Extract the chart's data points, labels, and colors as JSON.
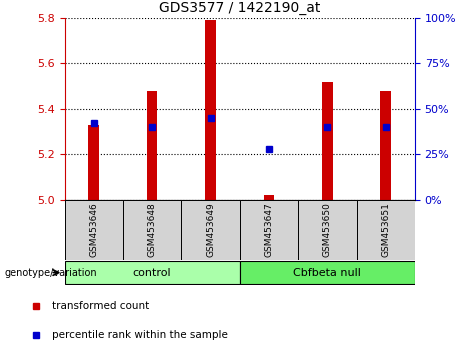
{
  "title": "GDS3577 / 1422190_at",
  "samples": [
    "GSM453646",
    "GSM453648",
    "GSM453649",
    "GSM453647",
    "GSM453650",
    "GSM453651"
  ],
  "transformed_counts": [
    5.33,
    5.48,
    5.79,
    5.02,
    5.52,
    5.48
  ],
  "percentile_ranks": [
    42,
    40,
    45,
    28,
    40,
    40
  ],
  "ylim_left": [
    5.0,
    5.8
  ],
  "ylim_right": [
    0,
    100
  ],
  "yticks_left": [
    5.0,
    5.2,
    5.4,
    5.6,
    5.8
  ],
  "yticks_right": [
    0,
    25,
    50,
    75,
    100
  ],
  "bar_color": "#cc0000",
  "dot_color": "#0000cc",
  "bar_width": 0.18,
  "groups": [
    {
      "label": "control",
      "indices": [
        0,
        1,
        2
      ],
      "color": "#aaffaa"
    },
    {
      "label": "Cbfbeta null",
      "indices": [
        3,
        4,
        5
      ],
      "color": "#66ee66"
    }
  ],
  "group_label": "genotype/variation",
  "legend_items": [
    {
      "label": "transformed count",
      "color": "#cc0000"
    },
    {
      "label": "percentile rank within the sample",
      "color": "#0000cc"
    }
  ],
  "tick_color_left": "#cc0000",
  "tick_color_right": "#0000cc",
  "background_label": "#d3d3d3"
}
